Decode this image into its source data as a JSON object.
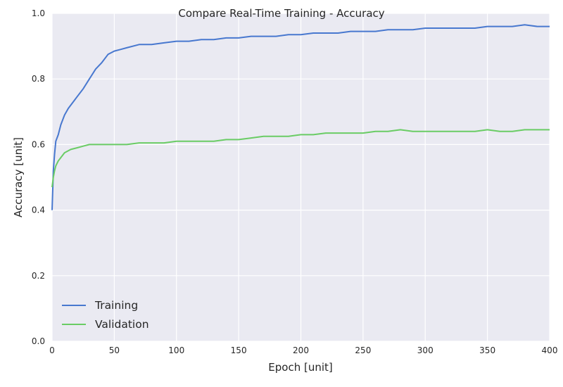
{
  "chart_data": {
    "type": "line",
    "title": "Compare Real-Time Training - Accuracy",
    "xlabel": "Epoch [unit]",
    "ylabel": "Accuracy [unit]",
    "xlim": [
      0,
      400
    ],
    "ylim": [
      0.0,
      1.0
    ],
    "xticks": [
      "0",
      "50",
      "100",
      "150",
      "200",
      "250",
      "300",
      "350",
      "400"
    ],
    "yticks": [
      "0.0",
      "0.2",
      "0.4",
      "0.6",
      "0.8",
      "1.0"
    ],
    "grid": true,
    "legend_position": "lower-left",
    "background": "#eaeaf2",
    "series": [
      {
        "name": "Training",
        "color": "#4878cf",
        "x": [
          0,
          1,
          2,
          3,
          5,
          7,
          10,
          13,
          15,
          18,
          20,
          25,
          30,
          35,
          40,
          45,
          50,
          55,
          60,
          70,
          80,
          90,
          100,
          110,
          120,
          130,
          140,
          150,
          160,
          170,
          180,
          190,
          200,
          210,
          220,
          230,
          240,
          250,
          260,
          270,
          280,
          290,
          300,
          310,
          320,
          330,
          340,
          350,
          360,
          370,
          380,
          390,
          400
        ],
        "values": [
          0.4,
          0.52,
          0.57,
          0.61,
          0.63,
          0.66,
          0.69,
          0.71,
          0.72,
          0.735,
          0.745,
          0.77,
          0.8,
          0.83,
          0.85,
          0.875,
          0.885,
          0.89,
          0.895,
          0.905,
          0.905,
          0.91,
          0.915,
          0.915,
          0.92,
          0.92,
          0.925,
          0.925,
          0.93,
          0.93,
          0.93,
          0.935,
          0.935,
          0.94,
          0.94,
          0.94,
          0.945,
          0.945,
          0.945,
          0.95,
          0.95,
          0.95,
          0.955,
          0.955,
          0.955,
          0.955,
          0.955,
          0.96,
          0.96,
          0.96,
          0.965,
          0.96,
          0.96
        ]
      },
      {
        "name": "Validation",
        "color": "#6acc65",
        "x": [
          0,
          1,
          2,
          3,
          5,
          7,
          10,
          15,
          20,
          25,
          30,
          40,
          50,
          60,
          70,
          80,
          90,
          100,
          110,
          120,
          130,
          140,
          150,
          160,
          170,
          180,
          190,
          200,
          210,
          220,
          230,
          240,
          250,
          260,
          270,
          280,
          290,
          300,
          310,
          320,
          330,
          340,
          350,
          360,
          370,
          380,
          390,
          400
        ],
        "values": [
          0.47,
          0.5,
          0.52,
          0.535,
          0.55,
          0.56,
          0.575,
          0.585,
          0.59,
          0.595,
          0.6,
          0.6,
          0.6,
          0.6,
          0.605,
          0.605,
          0.605,
          0.61,
          0.61,
          0.61,
          0.61,
          0.615,
          0.615,
          0.62,
          0.625,
          0.625,
          0.625,
          0.63,
          0.63,
          0.635,
          0.635,
          0.635,
          0.635,
          0.64,
          0.64,
          0.645,
          0.64,
          0.64,
          0.64,
          0.64,
          0.64,
          0.64,
          0.645,
          0.64,
          0.64,
          0.645,
          0.645,
          0.645
        ]
      }
    ]
  }
}
